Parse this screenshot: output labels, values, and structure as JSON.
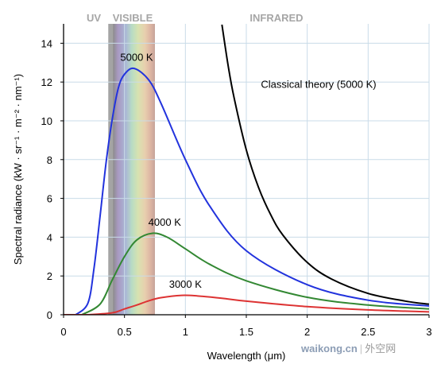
{
  "chart_data": {
    "type": "line",
    "xlabel": "Wavelength (μm)",
    "ylabel": "Spectral radiance (kW · sr⁻¹ · m⁻² · nm⁻¹)",
    "xlim": [
      0,
      3
    ],
    "ylim": [
      0,
      15
    ],
    "x_ticks": [
      0,
      0.5,
      1,
      1.5,
      2,
      2.5,
      3
    ],
    "x_tick_labels": [
      "0",
      "0.5",
      "1",
      "1.5",
      "2",
      "2.5",
      "3"
    ],
    "y_ticks": [
      0,
      2,
      4,
      6,
      8,
      10,
      12,
      14
    ],
    "y_tick_labels": [
      "0",
      "2",
      "4",
      "6",
      "8",
      "10",
      "12",
      "14"
    ],
    "grid": true,
    "regions": [
      {
        "label": "UV",
        "x_range": [
          0,
          0.38
        ],
        "color": "#a6a6a6"
      },
      {
        "label": "VISIBLE",
        "x_range": [
          0.38,
          0.75
        ],
        "color": "#a6a6a6"
      },
      {
        "label": "INFRARED",
        "x_range": [
          0.75,
          3
        ],
        "color": "#a6a6a6"
      }
    ],
    "series": [
      {
        "name": "5000 K",
        "color": "#2233dd",
        "x": [
          0.1,
          0.2,
          0.25,
          0.3,
          0.35,
          0.4,
          0.45,
          0.5,
          0.58,
          0.7,
          0.8,
          1.0,
          1.2,
          1.5,
          2.0,
          2.5,
          3.0
        ],
        "y": [
          0.0,
          0.6,
          2.4,
          5.1,
          7.9,
          10.1,
          11.7,
          12.4,
          12.7,
          12.1,
          10.9,
          8.0,
          5.6,
          3.3,
          1.55,
          0.75,
          0.45
        ]
      },
      {
        "name": "4000 K",
        "color": "#338833",
        "x": [
          0.15,
          0.3,
          0.4,
          0.5,
          0.6,
          0.73,
          0.85,
          1.0,
          1.2,
          1.5,
          2.0,
          2.5,
          3.0
        ],
        "y": [
          0.0,
          0.55,
          1.8,
          3.0,
          3.85,
          4.2,
          4.0,
          3.4,
          2.6,
          1.75,
          0.9,
          0.5,
          0.3
        ]
      },
      {
        "name": "3000 K",
        "color": "#dd3333",
        "x": [
          0.2,
          0.4,
          0.5,
          0.6,
          0.7,
          0.8,
          0.97,
          1.1,
          1.3,
          1.5,
          2.0,
          2.5,
          3.0
        ],
        "y": [
          0.0,
          0.1,
          0.3,
          0.5,
          0.72,
          0.88,
          1.0,
          0.97,
          0.85,
          0.7,
          0.42,
          0.25,
          0.15
        ]
      },
      {
        "name": "Classical theory (5000 K)",
        "color": "#000000",
        "x": [
          1.3,
          1.35,
          1.4,
          1.5,
          1.6,
          1.7,
          1.8,
          2.0,
          2.2,
          2.5,
          2.8,
          3.0
        ],
        "y": [
          14.96,
          12.88,
          11.18,
          8.5,
          6.57,
          5.16,
          4.11,
          2.7,
          1.84,
          1.1,
          0.71,
          0.54
        ]
      }
    ],
    "annotations": [
      {
        "text": "5000 K",
        "x": 0.6,
        "y": 13.1
      },
      {
        "text": "4000 K",
        "x": 0.83,
        "y": 4.6
      },
      {
        "text": "3000 K",
        "x": 1.0,
        "y": 1.4
      },
      {
        "text": "Classical theory (5000 K)",
        "x": 1.62,
        "y": 11.7
      }
    ]
  },
  "watermark": {
    "brand": "waikong.cn",
    "separator": "|",
    "site": "外空网"
  }
}
